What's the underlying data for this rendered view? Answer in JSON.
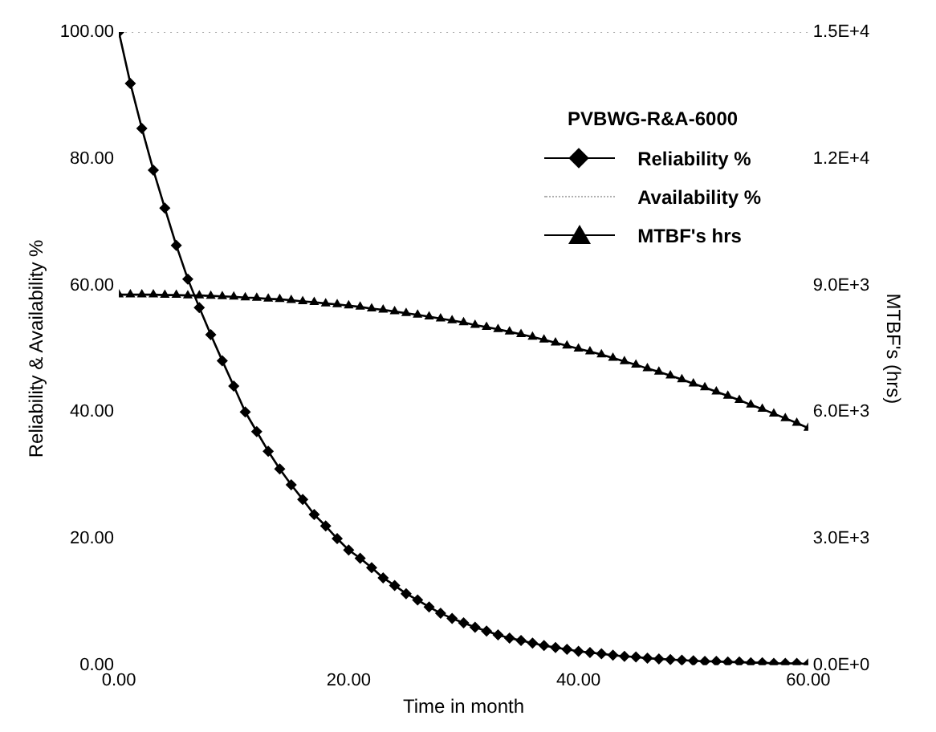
{
  "chart_data": {
    "type": "line",
    "xlabel": "Time in month",
    "ylabel": "Reliability & Availability %",
    "y2label": "MTBF's (hrs)",
    "legend_title": "PVBWG-R&A-6000",
    "legend": "top right",
    "grid": false,
    "x": [
      0,
      1,
      2,
      3,
      4,
      5,
      6,
      7,
      8,
      9,
      10,
      11,
      12,
      13,
      14,
      15,
      16,
      17,
      18,
      19,
      20,
      21,
      22,
      23,
      24,
      25,
      26,
      27,
      28,
      29,
      30,
      31,
      32,
      33,
      34,
      35,
      36,
      37,
      38,
      39,
      40,
      41,
      42,
      43,
      44,
      45,
      46,
      47,
      48,
      49,
      50,
      51,
      52,
      53,
      54,
      55,
      56,
      57,
      58,
      59,
      60
    ],
    "xlim": [
      0,
      60
    ],
    "xticks": [
      {
        "value": 0,
        "label": "0.00"
      },
      {
        "value": 20,
        "label": "20.00"
      },
      {
        "value": 40,
        "label": "40.00"
      },
      {
        "value": 60,
        "label": "60.00"
      }
    ],
    "ylim": [
      0,
      100
    ],
    "yticks": [
      {
        "value": 0,
        "label": "0.00"
      },
      {
        "value": 20,
        "label": "20.00"
      },
      {
        "value": 40,
        "label": "40.00"
      },
      {
        "value": 60,
        "label": "60.00"
      },
      {
        "value": 80,
        "label": "80.00"
      },
      {
        "value": 100,
        "label": "100.00"
      }
    ],
    "y2lim": [
      0,
      15000
    ],
    "y2ticks": [
      {
        "value": 0,
        "label": "0.0E+0"
      },
      {
        "value": 3000,
        "label": "3.0E+3"
      },
      {
        "value": 6000,
        "label": "6.0E+3"
      },
      {
        "value": 9000,
        "label": "9.0E+3"
      },
      {
        "value": 12000,
        "label": "1.2E+4"
      },
      {
        "value": 15000,
        "label": "1.5E+4"
      }
    ],
    "series": [
      {
        "name": "Reliability %",
        "color": "#000000",
        "marker": "diamond",
        "line_style": "solid",
        "values": [
          100,
          91.9,
          84.8,
          78.2,
          72.2,
          66.3,
          61,
          56.5,
          52.2,
          48.1,
          44.1,
          40,
          36.9,
          33.8,
          31,
          28.5,
          26.2,
          23.8,
          22,
          20,
          18.2,
          16.9,
          15.4,
          13.8,
          12.6,
          11.3,
          10.3,
          9.2,
          8.2,
          7.4,
          6.7,
          6,
          5.4,
          4.8,
          4.3,
          3.9,
          3.5,
          3.1,
          2.8,
          2.5,
          2.2,
          2,
          1.8,
          1.6,
          1.4,
          1.3,
          1.1,
          1,
          0.9,
          0.8,
          0.7,
          0.6,
          0.6,
          0.5,
          0.5,
          0.4,
          0.4,
          0.3,
          0.3,
          0.3,
          0.2
        ]
      },
      {
        "name": "Availability %",
        "color": "#b0b0b0",
        "marker": "none",
        "line_style": "dotted",
        "values": [
          100,
          100,
          100,
          100,
          100,
          100,
          100,
          100,
          100,
          100,
          100,
          100,
          100,
          100,
          100,
          100,
          100,
          100,
          100,
          100,
          100,
          100,
          100,
          100,
          100,
          100,
          100,
          100,
          100,
          100,
          100,
          100,
          100,
          100,
          100,
          100,
          100,
          100,
          100,
          100,
          100,
          100,
          100,
          100,
          100,
          100,
          100,
          100,
          100,
          100,
          100,
          100,
          100,
          100,
          100,
          100,
          100,
          100,
          100,
          100,
          100
        ]
      },
      {
        "name": "MTBF's hrs",
        "color": "#000000",
        "marker": "triangle",
        "line_style": "solid",
        "axis": "y2",
        "values": [
          8780,
          8780,
          8780,
          8780,
          8770,
          8770,
          8760,
          8760,
          8750,
          8740,
          8730,
          8710,
          8700,
          8680,
          8670,
          8650,
          8620,
          8600,
          8570,
          8550,
          8520,
          8490,
          8450,
          8420,
          8380,
          8340,
          8300,
          8260,
          8210,
          8170,
          8120,
          8060,
          8010,
          7960,
          7900,
          7840,
          7780,
          7710,
          7640,
          7570,
          7500,
          7430,
          7360,
          7280,
          7200,
          7120,
          7030,
          6950,
          6860,
          6770,
          6670,
          6580,
          6480,
          6380,
          6280,
          6170,
          6070,
          5960,
          5850,
          5740,
          5620
        ]
      }
    ]
  }
}
